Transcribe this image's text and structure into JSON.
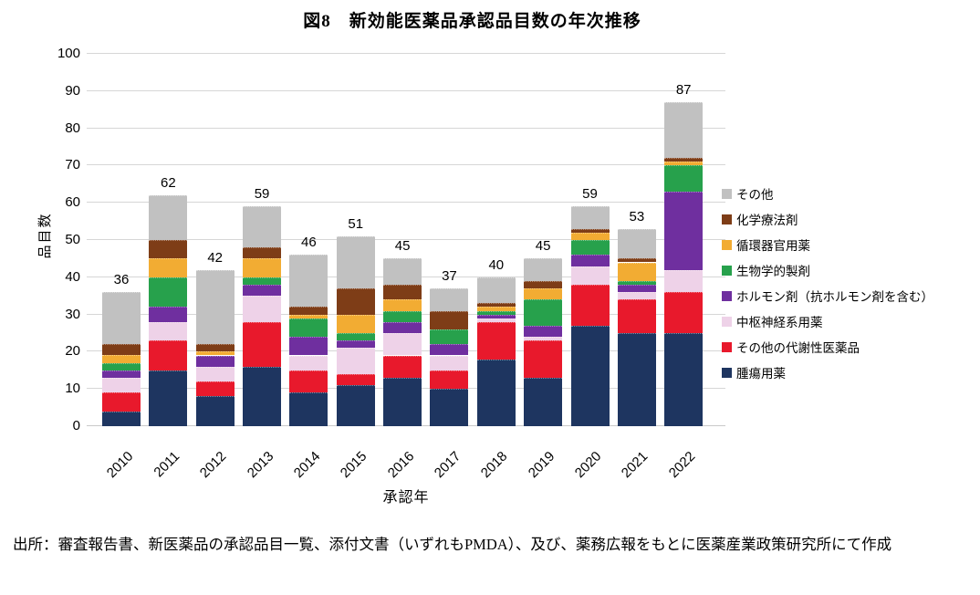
{
  "page": {
    "source_label": "出所：",
    "source_text": "審査報告書、新医薬品の承認品目一覧、添付文書（いずれもPMDA）、及び、薬務広報をもとに医薬産業政策研究所にて作成"
  },
  "chart_data": {
    "type": "bar",
    "stacked": true,
    "title": "図8　新効能医薬品承認品目数の年次推移",
    "xlabel": "承認年",
    "ylabel": "品目数",
    "ylim": [
      0,
      100
    ],
    "ytick_step": 10,
    "grid": true,
    "legend_position": "right",
    "categories": [
      "2010",
      "2011",
      "2012",
      "2013",
      "2014",
      "2015",
      "2016",
      "2017",
      "2018",
      "2019",
      "2020",
      "2021",
      "2022"
    ],
    "totals": [
      36,
      62,
      42,
      59,
      46,
      51,
      45,
      37,
      40,
      45,
      59,
      53,
      87
    ],
    "series": [
      {
        "name": "腫瘍用薬",
        "color": "#1e3560",
        "values": [
          4,
          15,
          8,
          16,
          9,
          11,
          13,
          10,
          18,
          13,
          27,
          25,
          25
        ]
      },
      {
        "name": "その他の代謝性医薬品",
        "color": "#e8192c",
        "values": [
          5,
          8,
          4,
          12,
          6,
          3,
          6,
          5,
          10,
          10,
          11,
          9,
          11
        ]
      },
      {
        "name": "中枢神経系用薬",
        "color": "#eed2e8",
        "values": [
          4,
          5,
          4,
          7,
          4,
          7,
          6,
          4,
          1,
          1,
          5,
          2,
          6
        ]
      },
      {
        "name": "ホルモン剤（抗ホルモン剤を含む）",
        "color": "#6f2f9f",
        "values": [
          2,
          4,
          3,
          3,
          5,
          2,
          3,
          3,
          1,
          3,
          3,
          2,
          21
        ]
      },
      {
        "name": "生物学的製剤",
        "color": "#27a14c",
        "values": [
          2,
          8,
          0,
          2,
          5,
          2,
          3,
          4,
          1,
          7,
          4,
          1,
          7
        ]
      },
      {
        "name": "循環器官用薬",
        "color": "#f2ac33",
        "values": [
          2,
          5,
          1,
          5,
          1,
          5,
          3,
          0,
          1,
          3,
          2,
          5,
          1
        ]
      },
      {
        "name": "化学療法剤",
        "color": "#7e3d17",
        "values": [
          3,
          5,
          2,
          3,
          2,
          7,
          4,
          5,
          1,
          2,
          1,
          1,
          1
        ]
      },
      {
        "name": "その他",
        "color": "#c1c1c1",
        "values": [
          14,
          12,
          20,
          11,
          14,
          14,
          7,
          6,
          7,
          6,
          6,
          8,
          15
        ]
      }
    ],
    "legend_top_to_bottom": [
      "その他",
      "化学療法剤",
      "循環器官用薬",
      "生物学的製剤",
      "ホルモン剤（抗ホルモン剤を含む）",
      "中枢神経系用薬",
      "その他の代謝性医薬品",
      "腫瘍用薬"
    ]
  }
}
